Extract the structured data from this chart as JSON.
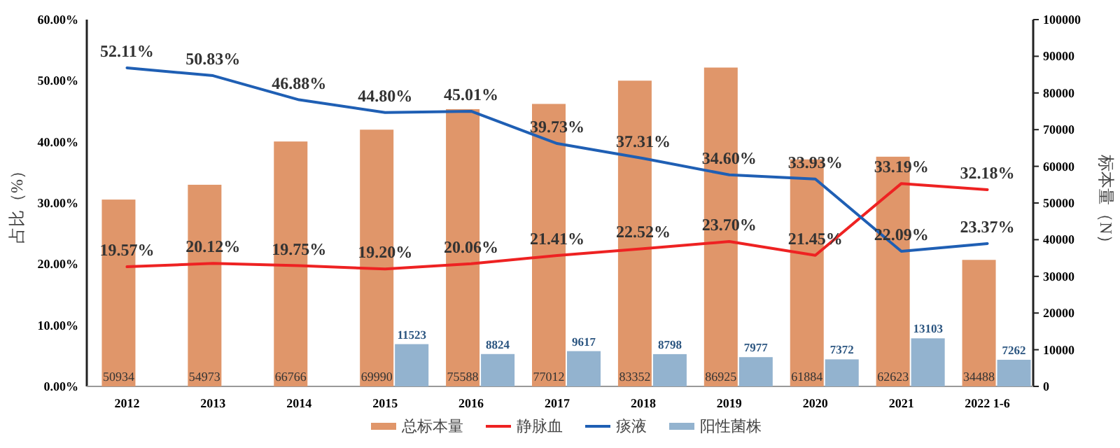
{
  "chart_data": {
    "type": "bar",
    "categories": [
      "2012",
      "2013",
      "2014",
      "2015",
      "2016",
      "2017",
      "2018",
      "2019",
      "2020",
      "2021",
      "2022 1-6"
    ],
    "ylabel": "占比（%）",
    "y2label": "标本量（N）",
    "ylim": [
      0,
      60
    ],
    "yticks": [
      {
        "value": 0,
        "label": "0.00%"
      },
      {
        "value": 10,
        "label": "10.00%"
      },
      {
        "value": 20,
        "label": "20.00%"
      },
      {
        "value": 30,
        "label": "30.00%"
      },
      {
        "value": 40,
        "label": "40.00%"
      },
      {
        "value": 50,
        "label": "50.00%"
      },
      {
        "value": 60,
        "label": "60.00%"
      }
    ],
    "y2lim": [
      0,
      100000
    ],
    "y2ticks": [
      0,
      10000,
      20000,
      30000,
      40000,
      50000,
      60000,
      70000,
      80000,
      90000,
      100000
    ],
    "series": [
      {
        "name": "总标本量",
        "axis": "y2",
        "color": "#e0966a",
        "values": [
          50934,
          54973,
          66766,
          69990,
          75588,
          77012,
          83352,
          86925,
          61884,
          62623,
          34488
        ],
        "value_labels": [
          "50934",
          "54973",
          "66766",
          "69990",
          "75588",
          "77012",
          "83352",
          "86925",
          "61884",
          "62623",
          "34488"
        ]
      },
      {
        "name": "静脉血",
        "type": "line",
        "color": "#ee2222",
        "values": [
          19.57,
          20.12,
          19.75,
          19.2,
          20.06,
          21.41,
          22.52,
          23.7,
          21.45,
          33.19,
          32.18
        ],
        "value_labels": [
          "19.57%",
          "20.12%",
          "19.75%",
          "19.20%",
          "20.06%",
          "21.41%",
          "22.52%",
          "23.70%",
          "21.45%",
          "33.19%",
          "32.18%"
        ]
      },
      {
        "name": "痰液",
        "type": "line",
        "color": "#1f5fb4",
        "values": [
          52.11,
          50.83,
          46.88,
          44.8,
          45.01,
          39.73,
          37.31,
          34.6,
          33.93,
          22.09,
          23.37
        ],
        "value_labels": [
          "52.11%",
          "50.83%",
          "46.88%",
          "44.80%",
          "45.01%",
          "39.73%",
          "37.31%",
          "34.60%",
          "33.93%",
          "22.09%",
          "23.37%"
        ]
      },
      {
        "name": "阳性菌株",
        "axis": "y2",
        "color": "#93b3cf",
        "values": [
          null,
          null,
          null,
          11523,
          8824,
          9617,
          8798,
          7977,
          7372,
          13103,
          7262
        ],
        "value_labels": [
          null,
          null,
          null,
          "11523",
          "8824",
          "9617",
          "8798",
          "7977",
          "7372",
          "13103",
          "7262"
        ]
      }
    ],
    "legend": "bottom",
    "grid": false
  }
}
